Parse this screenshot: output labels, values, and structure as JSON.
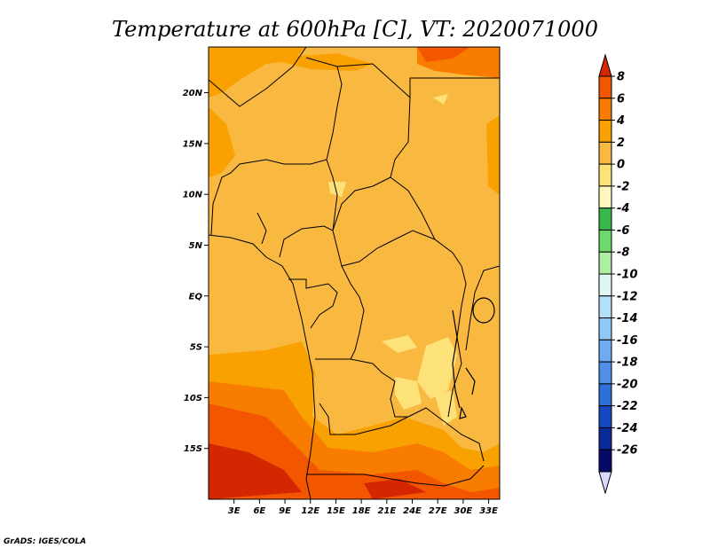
{
  "title": "Temperature at 600hPa [C], VT: 2020071000",
  "credit": "GrADS: IGES/COLA",
  "map": {
    "lat_labels": [
      "20N",
      "15N",
      "10N",
      "5N",
      "EQ",
      "5S",
      "10S",
      "15S"
    ],
    "lat_values": [
      20,
      15,
      10,
      5,
      0,
      -5,
      -10,
      -15
    ],
    "lon_labels": [
      "3E",
      "6E",
      "9E",
      "12E",
      "15E",
      "18E",
      "21E",
      "24E",
      "27E",
      "30E",
      "33E"
    ],
    "lon_values": [
      3,
      6,
      9,
      12,
      15,
      18,
      21,
      24,
      27,
      30,
      33
    ],
    "lat_range": [
      -20,
      24.5
    ],
    "lon_range": [
      0,
      34.3
    ]
  },
  "colorbar": {
    "labels": [
      "8",
      "6",
      "4",
      "2",
      "0",
      "-2",
      "-4",
      "-6",
      "-8",
      "-10",
      "-12",
      "-14",
      "-16",
      "-18",
      "-20",
      "-22",
      "-24",
      "-26"
    ],
    "colors_top_to_bottom": [
      "#d42600",
      "#f25700",
      "#f87c00",
      "#f9a100",
      "#f9b940",
      "#fde27a",
      "#fff6c0",
      "#36b84a",
      "#6fd86a",
      "#afeea5",
      "#dff6f2",
      "#b3e1f9",
      "#8ec8f5",
      "#6fabef",
      "#4f8fe8",
      "#2f6fdc",
      "#1548c0",
      "#0a2a98",
      "#040a66",
      "#d8dcfa"
    ]
  }
}
